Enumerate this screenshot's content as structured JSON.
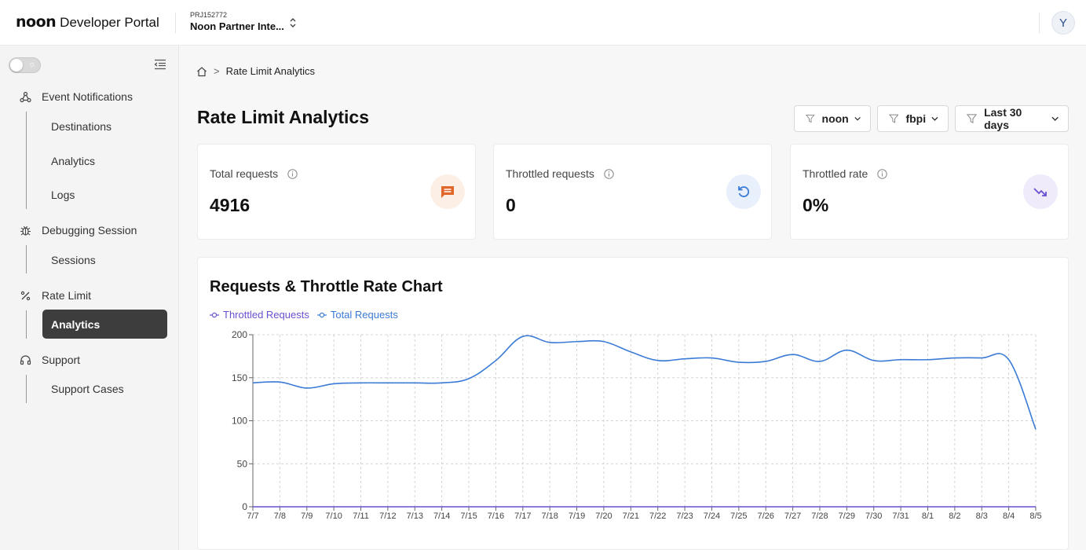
{
  "header": {
    "logo_text": "noon",
    "portal_name": "Developer Portal",
    "project_id": "PRJ152772",
    "project_name": "Noon Partner Inte...",
    "avatar_initial": "Y"
  },
  "sidebar": {
    "groups": [
      {
        "label": "Event Notifications",
        "icon": "webhook-icon",
        "items": [
          "Destinations",
          "Analytics",
          "Logs"
        ]
      },
      {
        "label": "Debugging Session",
        "icon": "bug-icon",
        "items": [
          "Sessions"
        ]
      },
      {
        "label": "Rate Limit",
        "icon": "percent-icon",
        "items": [
          "Analytics"
        ]
      },
      {
        "label": "Support",
        "icon": "headset-icon",
        "items": [
          "Support Cases"
        ]
      }
    ],
    "active_item": "Analytics"
  },
  "breadcrumb": {
    "separator": ">",
    "current": "Rate Limit Analytics"
  },
  "page": {
    "title": "Rate Limit Analytics",
    "filters": [
      "noon",
      "fbpi",
      "Last 30 days"
    ]
  },
  "stats": [
    {
      "label": "Total requests",
      "value": "4916",
      "icon": "message-icon",
      "color": "#e0662a",
      "bg": "#fcefe6"
    },
    {
      "label": "Throttled requests",
      "value": "0",
      "icon": "refresh-icon",
      "color": "#3b7bd6",
      "bg": "#e8f0fb"
    },
    {
      "label": "Throttled rate",
      "value": "0%",
      "icon": "trend-down-icon",
      "color": "#6b4fd1",
      "bg": "#efebfa"
    }
  ],
  "chart": {
    "title": "Requests & Throttle Rate Chart"
  },
  "chart_data": {
    "type": "line",
    "x": [
      "7/7",
      "7/8",
      "7/9",
      "7/10",
      "7/11",
      "7/12",
      "7/13",
      "7/14",
      "7/15",
      "7/16",
      "7/17",
      "7/18",
      "7/19",
      "7/20",
      "7/21",
      "7/22",
      "7/23",
      "7/24",
      "7/25",
      "7/26",
      "7/27",
      "7/28",
      "7/29",
      "7/30",
      "7/31",
      "8/1",
      "8/2",
      "8/3",
      "8/4",
      "8/5"
    ],
    "series": [
      {
        "name": "Throttled Requests",
        "color": "#6b4fd1",
        "values": [
          0,
          0,
          0,
          0,
          0,
          0,
          0,
          0,
          0,
          0,
          0,
          0,
          0,
          0,
          0,
          0,
          0,
          0,
          0,
          0,
          0,
          0,
          0,
          0,
          0,
          0,
          0,
          0,
          0,
          0
        ]
      },
      {
        "name": "Total Requests",
        "color": "#3b7bd6",
        "values": [
          144,
          145,
          138,
          143,
          144,
          144,
          144,
          144,
          149,
          170,
          198,
          191,
          192,
          192,
          180,
          170,
          172,
          173,
          168,
          169,
          177,
          169,
          182,
          170,
          171,
          171,
          173,
          173,
          171,
          90
        ]
      }
    ],
    "y_ticks": [
      0,
      50,
      100,
      150,
      200
    ],
    "ylim": [
      0,
      200
    ],
    "grid": true,
    "legend": "top-left"
  }
}
